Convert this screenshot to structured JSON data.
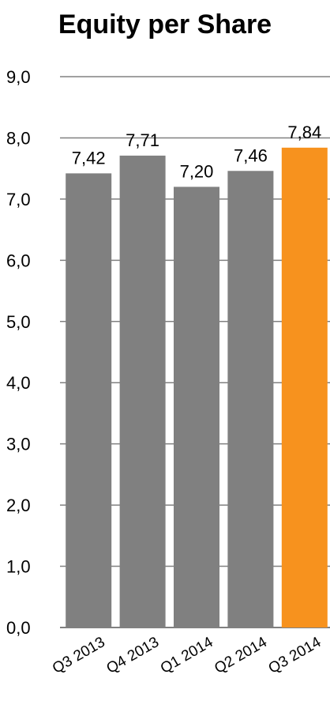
{
  "chart_data": {
    "type": "bar",
    "title": "Equity per Share",
    "categories": [
      "Q3 2013",
      "Q4 2013",
      "Q1 2014",
      "Q2 2014",
      "Q3 2014"
    ],
    "values": [
      7.42,
      7.71,
      7.2,
      7.46,
      7.84
    ],
    "value_labels": [
      "7,42",
      "7,71",
      "7,20",
      "7,46",
      "7,84"
    ],
    "xlabel": "",
    "ylabel": "",
    "ylim": [
      0,
      9
    ],
    "yticks": [
      0,
      1,
      2,
      3,
      4,
      5,
      6,
      7,
      8,
      9
    ],
    "ytick_labels": [
      "0,0",
      "1,0",
      "2,0",
      "3,0",
      "4,0",
      "5,0",
      "6,0",
      "7,0",
      "8,0",
      "9,0"
    ],
    "grid": true,
    "legend": "none",
    "colors": {
      "bar": "#808080",
      "highlight": "#f7921e",
      "grid": "#808080",
      "axis": "#808080"
    },
    "highlight_index": 4
  }
}
